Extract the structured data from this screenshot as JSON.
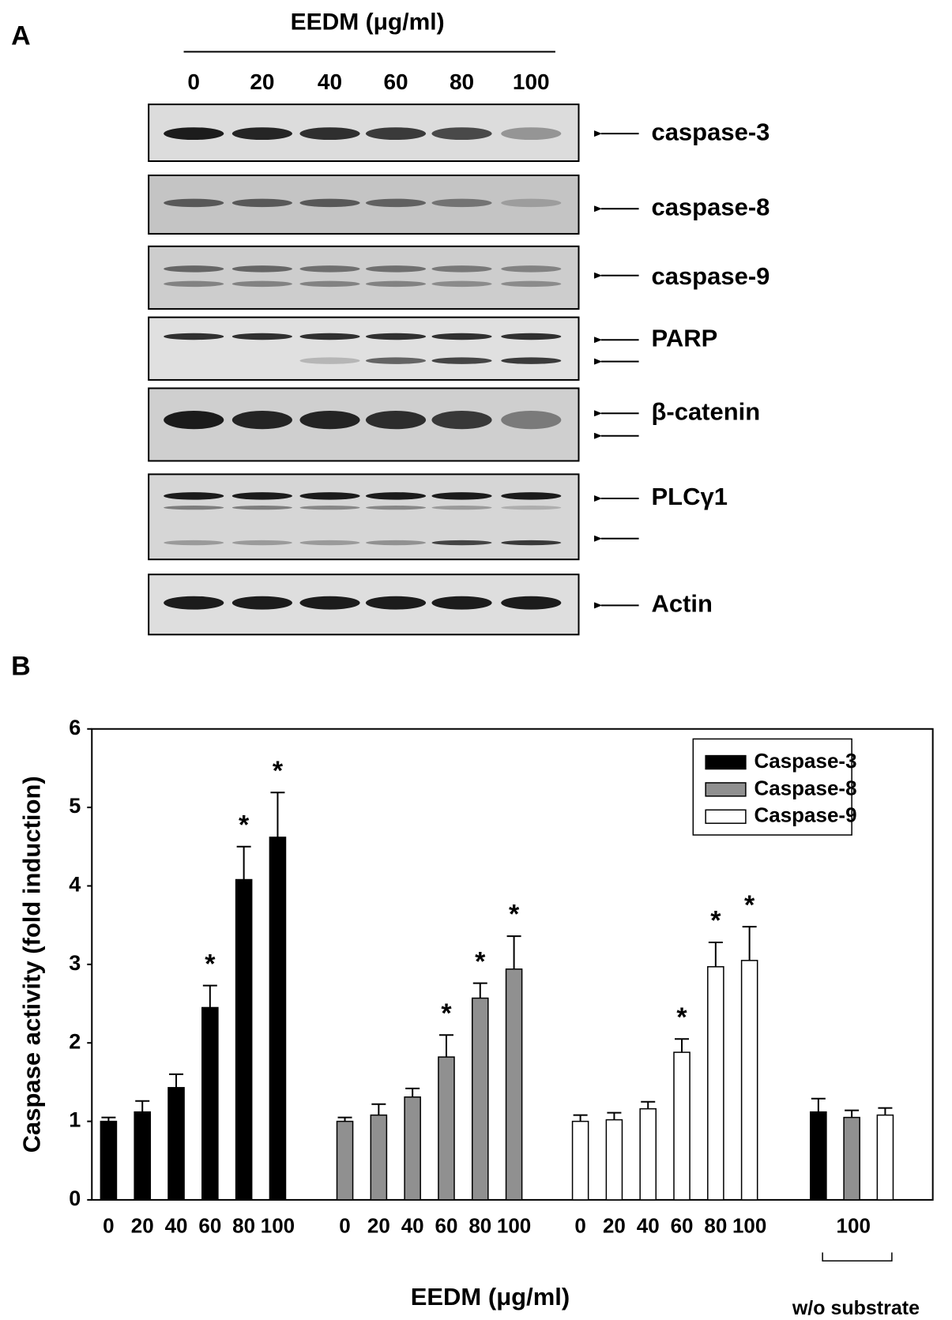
{
  "panel_a": {
    "label": "A",
    "treatment": "EEDM (μg/ml)",
    "doses": [
      "0",
      "20",
      "40",
      "60",
      "80",
      "100"
    ],
    "blots": [
      {
        "label": "caspase-3"
      },
      {
        "label": "caspase-8"
      },
      {
        "label": "caspase-9"
      },
      {
        "label": "PARP"
      },
      {
        "label": "β-catenin"
      },
      {
        "label": "PLCγ1"
      },
      {
        "label": "Actin"
      }
    ]
  },
  "chart_data": {
    "type": "bar",
    "panel_label": "B",
    "ylabel": "Caspase activity (fold induction)",
    "xlabel": "EEDM (μg/ml)",
    "categories": [
      "0",
      "20",
      "40",
      "60",
      "80",
      "100"
    ],
    "control_category": "100",
    "control_label": "w/o substrate",
    "ylim": [
      0,
      6
    ],
    "yticks": [
      0,
      1,
      2,
      3,
      4,
      5,
      6
    ],
    "legend": "upper right",
    "significance_label": "*",
    "series": [
      {
        "name": "Caspase-3",
        "color": "#000000",
        "values": [
          1.0,
          1.12,
          1.43,
          2.45,
          4.08,
          4.62
        ],
        "errors": [
          0.05,
          0.14,
          0.17,
          0.28,
          0.42,
          0.57
        ],
        "significant": [
          false,
          false,
          false,
          true,
          true,
          true
        ],
        "control_value": 1.12,
        "control_error": 0.17
      },
      {
        "name": "Caspase-8",
        "color": "#909090",
        "values": [
          1.0,
          1.08,
          1.31,
          1.82,
          2.57,
          2.94
        ],
        "errors": [
          0.05,
          0.14,
          0.11,
          0.28,
          0.19,
          0.42
        ],
        "significant": [
          false,
          false,
          false,
          true,
          true,
          true
        ],
        "control_value": 1.05,
        "control_error": 0.09
      },
      {
        "name": "Caspase-9",
        "color": "#ffffff",
        "values": [
          1.0,
          1.02,
          1.16,
          1.88,
          2.97,
          3.05
        ],
        "errors": [
          0.08,
          0.09,
          0.09,
          0.17,
          0.31,
          0.43
        ],
        "significant": [
          false,
          false,
          false,
          true,
          true,
          true
        ],
        "control_value": 1.08,
        "control_error": 0.09
      }
    ]
  }
}
